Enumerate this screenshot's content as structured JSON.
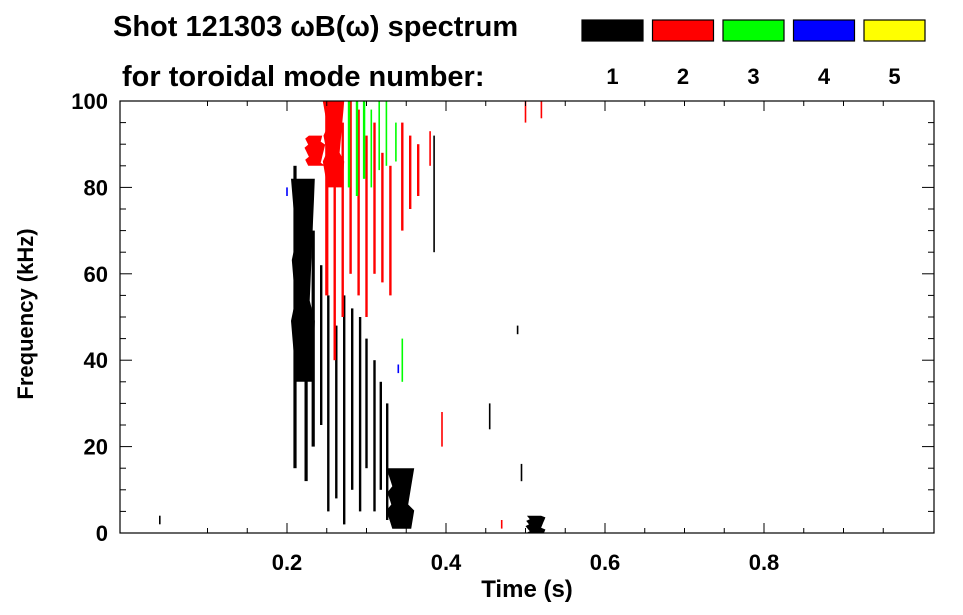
{
  "chart_data": {
    "type": "heatmap",
    "title": "Shot 121303 ωB(ω) spectrum",
    "subtitle": "for toroidal mode number:",
    "xlabel": "Time (s)",
    "ylabel": "Frequency (kHz)",
    "xlim": [
      0.0,
      1.0
    ],
    "ylim": [
      0,
      100
    ],
    "x_ticks": [
      "0.2",
      "0.4",
      "0.6",
      "0.8"
    ],
    "x_tick_values": [
      0.2,
      0.4,
      0.6,
      0.8
    ],
    "y_ticks": [
      "0",
      "20",
      "40",
      "60",
      "80",
      "100"
    ],
    "y_tick_values": [
      0,
      20,
      40,
      60,
      80,
      100
    ],
    "grid": false,
    "legend": {
      "placement": "top-right",
      "entries": [
        {
          "label": "1",
          "color": "#000000"
        },
        {
          "label": "2",
          "color": "#ff0000"
        },
        {
          "label": "3",
          "color": "#00ff00"
        },
        {
          "label": "4",
          "color": "#0000ff"
        },
        {
          "label": "5",
          "color": "#ffff00"
        }
      ]
    },
    "regions": [
      {
        "mode": "1",
        "type": "blob",
        "t": [
          0.205,
          0.235
        ],
        "f": [
          35,
          82
        ]
      },
      {
        "mode": "1",
        "type": "streak",
        "t": 0.21,
        "f": [
          15,
          85
        ],
        "w": 0.004
      },
      {
        "mode": "1",
        "type": "streak",
        "t": 0.224,
        "f": [
          12,
          78
        ],
        "w": 0.004
      },
      {
        "mode": "1",
        "type": "streak",
        "t": 0.233,
        "f": [
          20,
          70
        ],
        "w": 0.004
      },
      {
        "mode": "1",
        "type": "streak",
        "t": 0.243,
        "f": [
          25,
          62
        ],
        "w": 0.003
      },
      {
        "mode": "1",
        "type": "streak",
        "t": 0.252,
        "f": [
          5,
          55
        ],
        "w": 0.003
      },
      {
        "mode": "1",
        "type": "streak",
        "t": 0.262,
        "f": [
          8,
          48
        ],
        "w": 0.003
      },
      {
        "mode": "1",
        "type": "streak",
        "t": 0.272,
        "f": [
          2,
          55
        ],
        "w": 0.003
      },
      {
        "mode": "1",
        "type": "streak",
        "t": 0.282,
        "f": [
          10,
          52
        ],
        "w": 0.003
      },
      {
        "mode": "1",
        "type": "streak",
        "t": 0.292,
        "f": [
          5,
          50
        ],
        "w": 0.003
      },
      {
        "mode": "1",
        "type": "streak",
        "t": 0.3,
        "f": [
          15,
          45
        ],
        "w": 0.003
      },
      {
        "mode": "1",
        "type": "streak",
        "t": 0.31,
        "f": [
          5,
          40
        ],
        "w": 0.003
      },
      {
        "mode": "1",
        "type": "streak",
        "t": 0.318,
        "f": [
          10,
          35
        ],
        "w": 0.003
      },
      {
        "mode": "1",
        "type": "streak",
        "t": 0.326,
        "f": [
          3,
          30
        ],
        "w": 0.003
      },
      {
        "mode": "1",
        "type": "blob",
        "t": [
          0.325,
          0.36
        ],
        "f": [
          1,
          15
        ]
      },
      {
        "mode": "1",
        "type": "streak",
        "t": 0.385,
        "f": [
          65,
          92
        ],
        "w": 0.002
      },
      {
        "mode": "1",
        "type": "streak",
        "t": 0.455,
        "f": [
          24,
          30
        ],
        "w": 0.002
      },
      {
        "mode": "1",
        "type": "streak",
        "t": 0.49,
        "f": [
          46,
          48
        ],
        "w": 0.002
      },
      {
        "mode": "1",
        "type": "streak",
        "t": 0.495,
        "f": [
          12,
          16
        ],
        "w": 0.002
      },
      {
        "mode": "1",
        "type": "blob",
        "t": [
          0.5,
          0.525
        ],
        "f": [
          0,
          4
        ]
      },
      {
        "mode": "1",
        "type": "streak",
        "t": 0.04,
        "f": [
          2,
          4
        ],
        "w": 0.002
      },
      {
        "mode": "2",
        "type": "blob",
        "t": [
          0.245,
          0.272
        ],
        "f": [
          80,
          100
        ]
      },
      {
        "mode": "2",
        "type": "blob",
        "t": [
          0.222,
          0.248
        ],
        "f": [
          85,
          92
        ]
      },
      {
        "mode": "2",
        "type": "streak",
        "t": 0.25,
        "f": [
          55,
          100
        ],
        "w": 0.004
      },
      {
        "mode": "2",
        "type": "streak",
        "t": 0.26,
        "f": [
          40,
          98
        ],
        "w": 0.003
      },
      {
        "mode": "2",
        "type": "streak",
        "t": 0.27,
        "f": [
          50,
          95
        ],
        "w": 0.003
      },
      {
        "mode": "2",
        "type": "streak",
        "t": 0.28,
        "f": [
          60,
          100
        ],
        "w": 0.003
      },
      {
        "mode": "2",
        "type": "streak",
        "t": 0.29,
        "f": [
          55,
          98
        ],
        "w": 0.003
      },
      {
        "mode": "2",
        "type": "streak",
        "t": 0.3,
        "f": [
          50,
          92
        ],
        "w": 0.003
      },
      {
        "mode": "2",
        "type": "streak",
        "t": 0.31,
        "f": [
          60,
          95
        ],
        "w": 0.003
      },
      {
        "mode": "2",
        "type": "streak",
        "t": 0.32,
        "f": [
          58,
          88
        ],
        "w": 0.003
      },
      {
        "mode": "2",
        "type": "streak",
        "t": 0.33,
        "f": [
          55,
          85
        ],
        "w": 0.003
      },
      {
        "mode": "2",
        "type": "streak",
        "t": 0.345,
        "f": [
          70,
          95
        ],
        "w": 0.003
      },
      {
        "mode": "2",
        "type": "streak",
        "t": 0.355,
        "f": [
          75,
          92
        ],
        "w": 0.003
      },
      {
        "mode": "2",
        "type": "streak",
        "t": 0.365,
        "f": [
          78,
          90
        ],
        "w": 0.003
      },
      {
        "mode": "2",
        "type": "streak",
        "t": 0.38,
        "f": [
          85,
          93
        ],
        "w": 0.002
      },
      {
        "mode": "2",
        "type": "streak",
        "t": 0.395,
        "f": [
          20,
          28
        ],
        "w": 0.002
      },
      {
        "mode": "2",
        "type": "streak",
        "t": 0.47,
        "f": [
          1,
          3
        ],
        "w": 0.002
      },
      {
        "mode": "2",
        "type": "streak",
        "t": 0.5,
        "f": [
          95,
          100
        ],
        "w": 0.002
      },
      {
        "mode": "2",
        "type": "streak",
        "t": 0.52,
        "f": [
          96,
          100
        ],
        "w": 0.002
      },
      {
        "mode": "3",
        "type": "streak",
        "t": 0.278,
        "f": [
          80,
          100
        ],
        "w": 0.003
      },
      {
        "mode": "3",
        "type": "streak",
        "t": 0.288,
        "f": [
          78,
          100
        ],
        "w": 0.003
      },
      {
        "mode": "3",
        "type": "streak",
        "t": 0.297,
        "f": [
          82,
          100
        ],
        "w": 0.003
      },
      {
        "mode": "3",
        "type": "streak",
        "t": 0.306,
        "f": [
          80,
          98
        ],
        "w": 0.002
      },
      {
        "mode": "3",
        "type": "streak",
        "t": 0.316,
        "f": [
          84,
          100
        ],
        "w": 0.002
      },
      {
        "mode": "3",
        "type": "streak",
        "t": 0.325,
        "f": [
          85,
          100
        ],
        "w": 0.002
      },
      {
        "mode": "3",
        "type": "streak",
        "t": 0.337,
        "f": [
          86,
          95
        ],
        "w": 0.002
      },
      {
        "mode": "3",
        "type": "streak",
        "t": 0.345,
        "f": [
          35,
          45
        ],
        "w": 0.002
      },
      {
        "mode": "4",
        "type": "streak",
        "t": 0.2,
        "f": [
          78,
          80
        ],
        "w": 0.002
      },
      {
        "mode": "4",
        "type": "streak",
        "t": 0.34,
        "f": [
          37,
          39
        ],
        "w": 0.002
      }
    ]
  }
}
